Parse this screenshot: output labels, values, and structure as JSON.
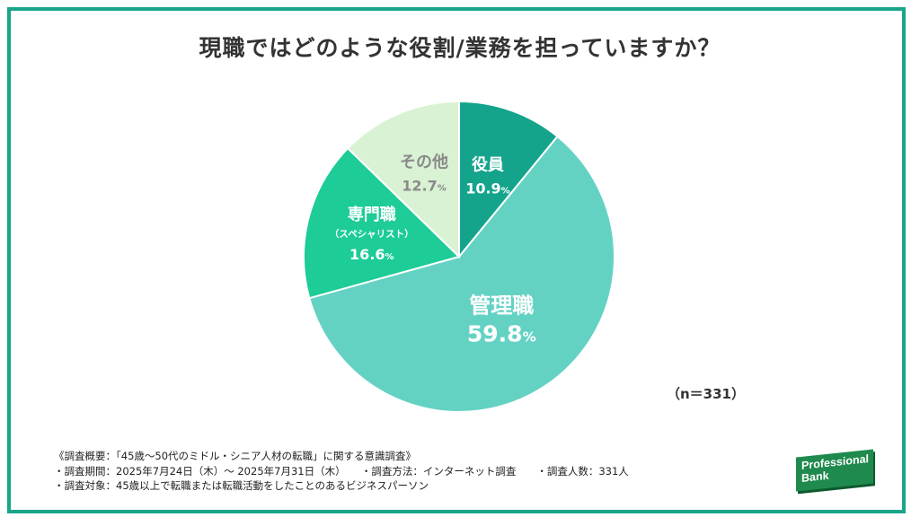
{
  "title": "現職ではどのような役割/業務を担っていますか？",
  "n_label": "（n＝331）",
  "chart_data": {
    "type": "pie",
    "slices": [
      {
        "label": "役員",
        "sublabel": "",
        "value": 10.9,
        "display": "10.9",
        "color": "#14a48c",
        "text_color": "#ffffff"
      },
      {
        "label": "管理職",
        "sublabel": "",
        "value": 59.8,
        "display": "59.8",
        "color": "#64d2c3",
        "text_color": "#ffffff"
      },
      {
        "label": "専門職",
        "sublabel": "（スペシャリスト）",
        "value": 16.6,
        "display": "16.6",
        "color": "#1dcc97",
        "text_color": "#ffffff"
      },
      {
        "label": "その他",
        "sublabel": "",
        "value": 12.7,
        "display": "12.7",
        "color": "#d8f2d3",
        "text_color": "#8a8a8a"
      }
    ],
    "unit": "%",
    "start": "12 o'clock",
    "direction": "clockwise"
  },
  "footnotes": [
    "《調査概要：「45歳〜50代のミドル・シニア人材の転職」に関する意識調査》",
    "・調査期間：2025年7月24日（木）〜 2025年7月31日（木）　　・調査方法：インターネット調査　　・調査人数：331人",
    "・調査対象：45歳以上で転職または転職活動をしたことのあるビジネスパーソン"
  ],
  "logo": {
    "line1": "Professional",
    "line2": "Bank"
  }
}
